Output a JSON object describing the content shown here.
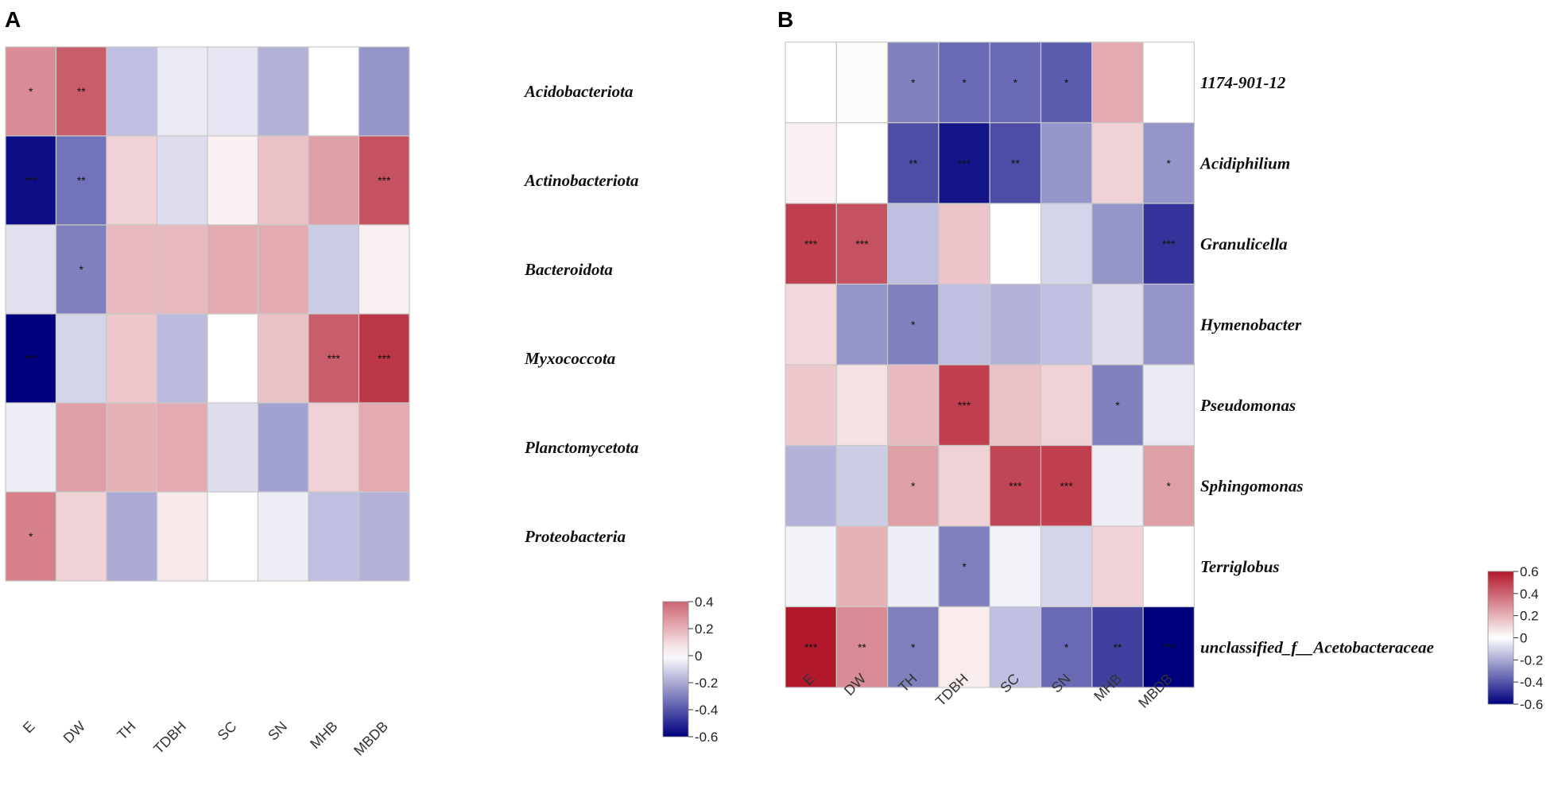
{
  "chart_data": [
    {
      "type": "heatmap",
      "panel": "A",
      "x": [
        "E",
        "DW",
        "TH",
        "TDBH",
        "SC",
        "SN",
        "MHB",
        "MBDB"
      ],
      "y": [
        "Acidobacteriota",
        "Actinobacteriota",
        "Bacteroidota",
        "Myxococcota",
        "Planctomycetota",
        "Proteobacteria"
      ],
      "values": [
        [
          0.3,
          0.42,
          -0.15,
          -0.05,
          -0.06,
          -0.18,
          0.0,
          -0.25
        ],
        [
          -0.57,
          -0.33,
          0.12,
          -0.08,
          0.04,
          0.16,
          0.25,
          0.45
        ],
        [
          -0.07,
          -0.3,
          0.18,
          0.18,
          0.22,
          0.22,
          -0.12,
          0.04
        ],
        [
          -0.6,
          -0.1,
          0.14,
          -0.16,
          0.0,
          0.16,
          0.42,
          0.52
        ],
        [
          -0.04,
          0.25,
          0.2,
          0.22,
          -0.08,
          -0.22,
          0.12,
          0.22
        ],
        [
          0.33,
          0.12,
          -0.2,
          0.06,
          0.0,
          -0.04,
          -0.15,
          -0.18
        ]
      ],
      "significance": [
        [
          "*",
          "**",
          "",
          "",
          "",
          "",
          "",
          ""
        ],
        [
          "***",
          "**",
          "",
          "",
          "",
          "",
          "",
          "***"
        ],
        [
          "",
          "*",
          "",
          "",
          "",
          "",
          "",
          ""
        ],
        [
          "***",
          "",
          "",
          "",
          "",
          "",
          "***",
          "***"
        ],
        [
          "",
          "",
          "",
          "",
          "",
          "",
          "",
          ""
        ],
        [
          "*",
          "",
          "",
          "",
          "",
          "",
          "",
          ""
        ]
      ],
      "colorbar": {
        "range": [
          -0.6,
          0.4
        ],
        "ticks": [
          "0.4",
          "0.2",
          "0",
          "-0.2",
          "-0.4",
          "-0.6"
        ]
      },
      "colors": {
        "low": "#00007f",
        "mid": "#ffffff",
        "high": "#b2182b"
      }
    },
    {
      "type": "heatmap",
      "panel": "B",
      "x": [
        "E",
        "DW",
        "TH",
        "TDBH",
        "SC",
        "SN",
        "MHB",
        "MBDB"
      ],
      "y": [
        "1174-901-12",
        "Acidiphilium",
        "Granulicella",
        "Hymenobacter",
        "Pseudomonas",
        "Sphingomonas",
        "Terriglobus",
        "unclassified_f__Acetobacteraceae"
      ],
      "values": [
        [
          0.0,
          0.01,
          -0.3,
          -0.35,
          -0.35,
          -0.38,
          0.22,
          0.0
        ],
        [
          0.04,
          0.0,
          -0.42,
          -0.55,
          -0.42,
          -0.25,
          0.12,
          -0.25
        ],
        [
          0.5,
          0.45,
          -0.15,
          0.15,
          0.0,
          -0.1,
          -0.25,
          -0.48
        ],
        [
          0.1,
          -0.25,
          -0.3,
          -0.15,
          -0.18,
          -0.15,
          -0.08,
          -0.25
        ],
        [
          0.14,
          0.08,
          0.18,
          0.5,
          0.16,
          0.12,
          -0.3,
          -0.05
        ],
        [
          -0.18,
          -0.12,
          0.25,
          0.12,
          0.48,
          0.5,
          -0.04,
          0.25
        ],
        [
          -0.03,
          0.2,
          -0.04,
          -0.3,
          -0.03,
          -0.1,
          0.12,
          0.0
        ],
        [
          0.6,
          0.3,
          -0.3,
          0.05,
          -0.15,
          -0.35,
          -0.45,
          -0.6
        ]
      ],
      "significance": [
        [
          "",
          "",
          "*",
          "*",
          "*",
          "*",
          "",
          ""
        ],
        [
          "",
          "",
          "**",
          "***",
          "**",
          "",
          "",
          "*"
        ],
        [
          "***",
          "***",
          "",
          "",
          "",
          "",
          "",
          "***"
        ],
        [
          "",
          "",
          "*",
          "",
          "",
          "",
          "",
          ""
        ],
        [
          "",
          "",
          "",
          "***",
          "",
          "",
          "*",
          ""
        ],
        [
          "",
          "",
          "*",
          "",
          "***",
          "***",
          "",
          "*"
        ],
        [
          "",
          "",
          "",
          "*",
          "",
          "",
          "",
          ""
        ],
        [
          "***",
          "**",
          "*",
          "",
          "",
          "*",
          "**",
          "***"
        ]
      ],
      "colorbar": {
        "range": [
          -0.6,
          0.6
        ],
        "ticks": [
          "0.6",
          "0.4",
          "0.2",
          "0",
          "-0.2",
          "-0.4",
          "-0.6"
        ]
      },
      "colors": {
        "low": "#00007f",
        "mid": "#ffffff",
        "high": "#b2182b"
      }
    }
  ]
}
